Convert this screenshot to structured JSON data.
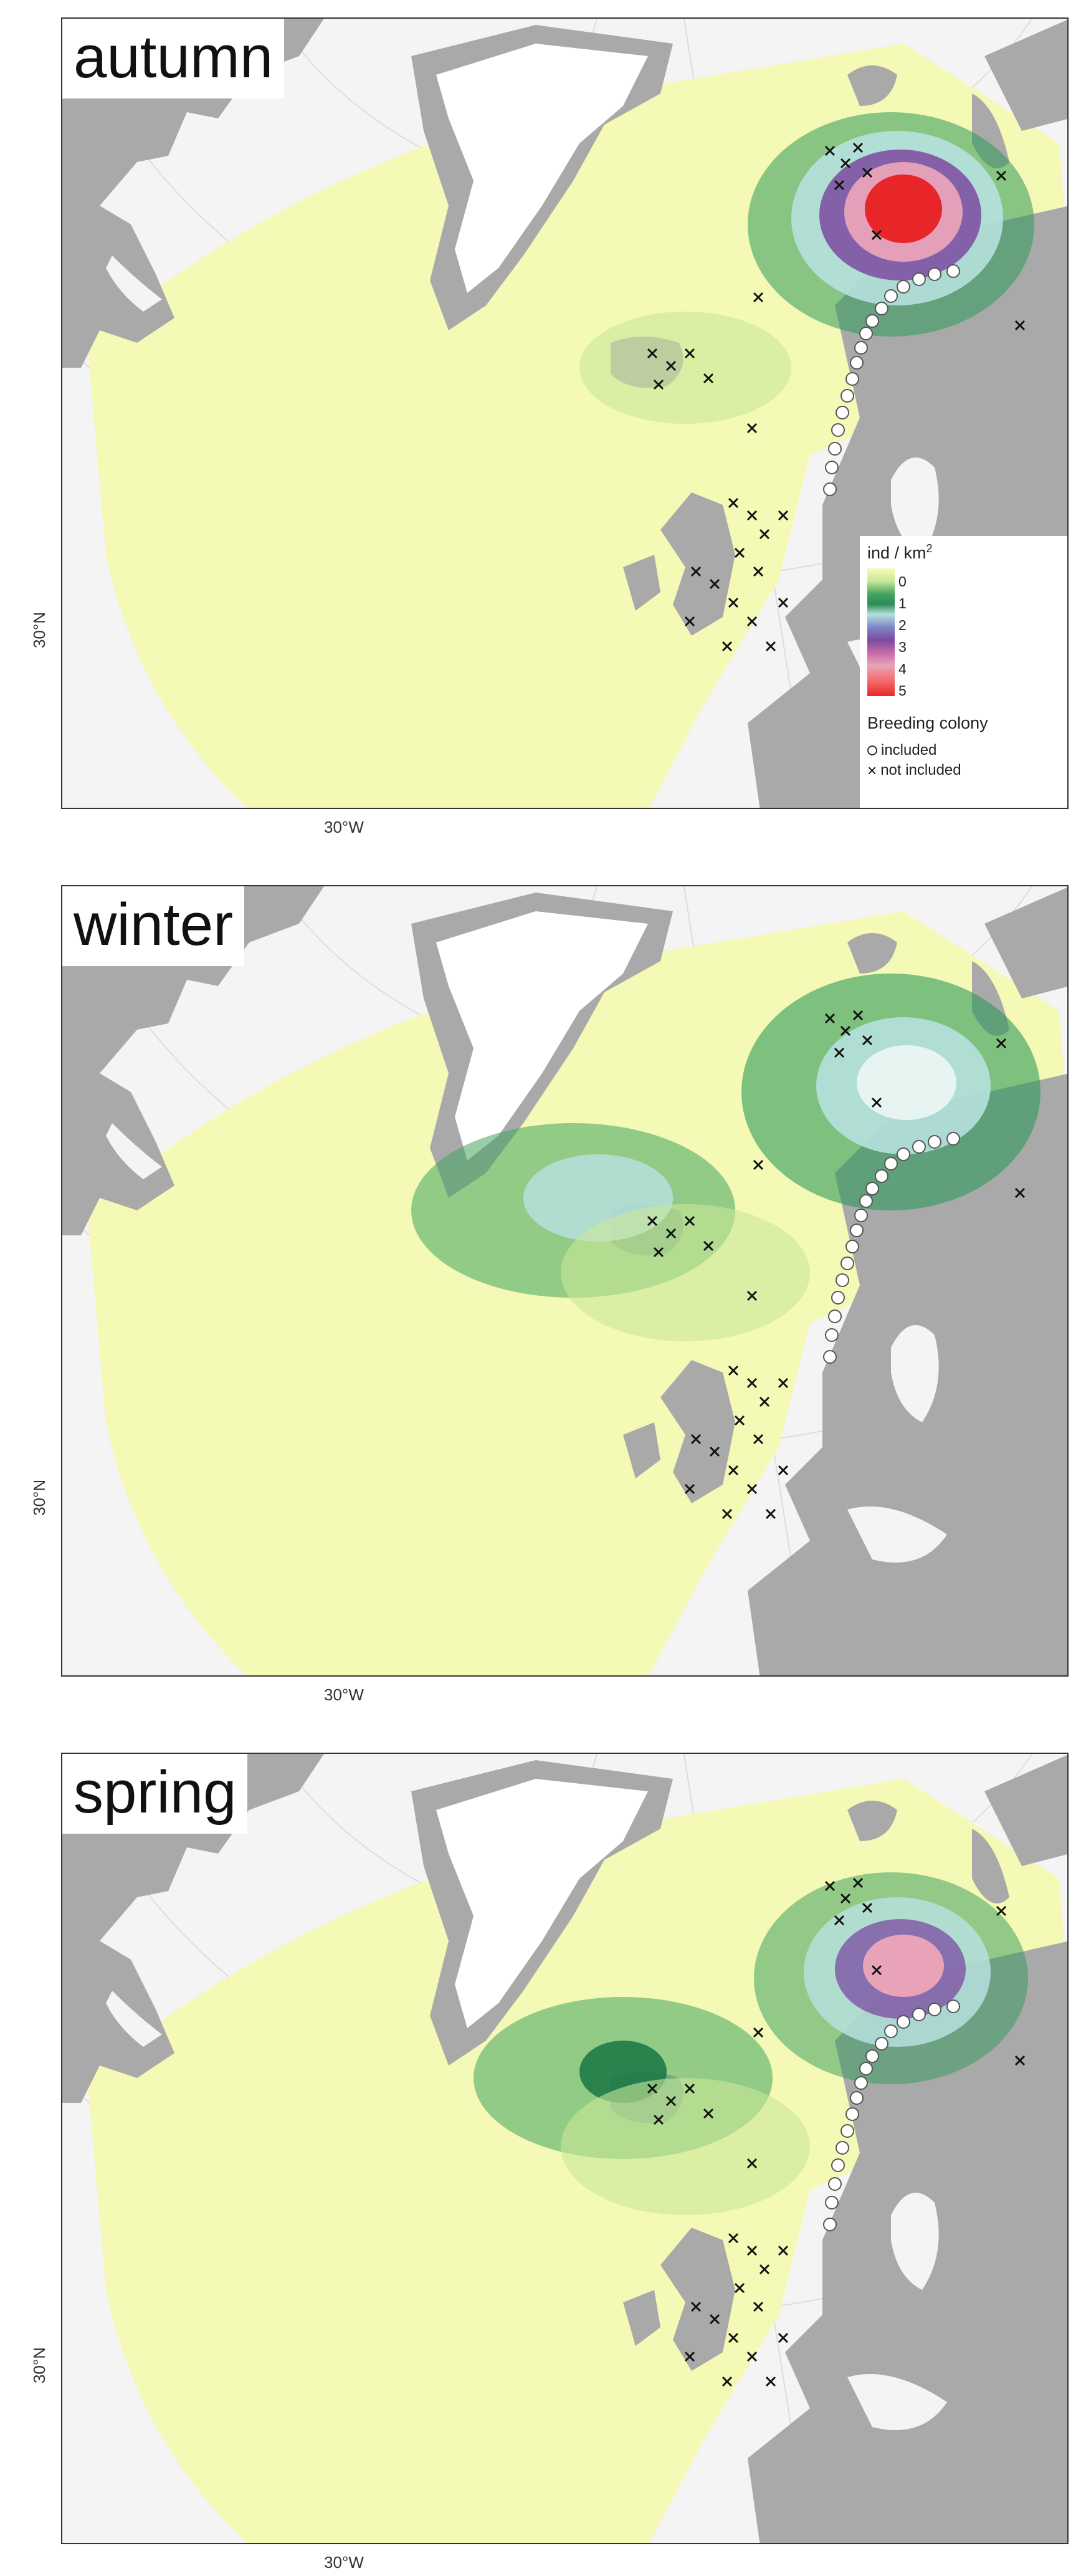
{
  "panels": [
    {
      "season": "autumn",
      "hotspot": "high"
    },
    {
      "season": "winter",
      "hotspot": "low"
    },
    {
      "season": "spring",
      "hotspot": "medium"
    }
  ],
  "axes": {
    "lat_label": "30°N",
    "lon_label": "30°W"
  },
  "legend": {
    "title": "ind / km",
    "title_sup": "2",
    "ticks": [
      "0",
      "1",
      "2",
      "3",
      "4",
      "5"
    ],
    "colony_title": "Breeding colony",
    "included_label": "included",
    "not_included_label": "not included"
  },
  "colors": {
    "ocean_low": "#f4f9b5",
    "land": "#a9a9a9",
    "ice": "#ffffff",
    "background": "#f4f4f4",
    "green": "#2f9a5a",
    "high": "#e8262a"
  }
}
